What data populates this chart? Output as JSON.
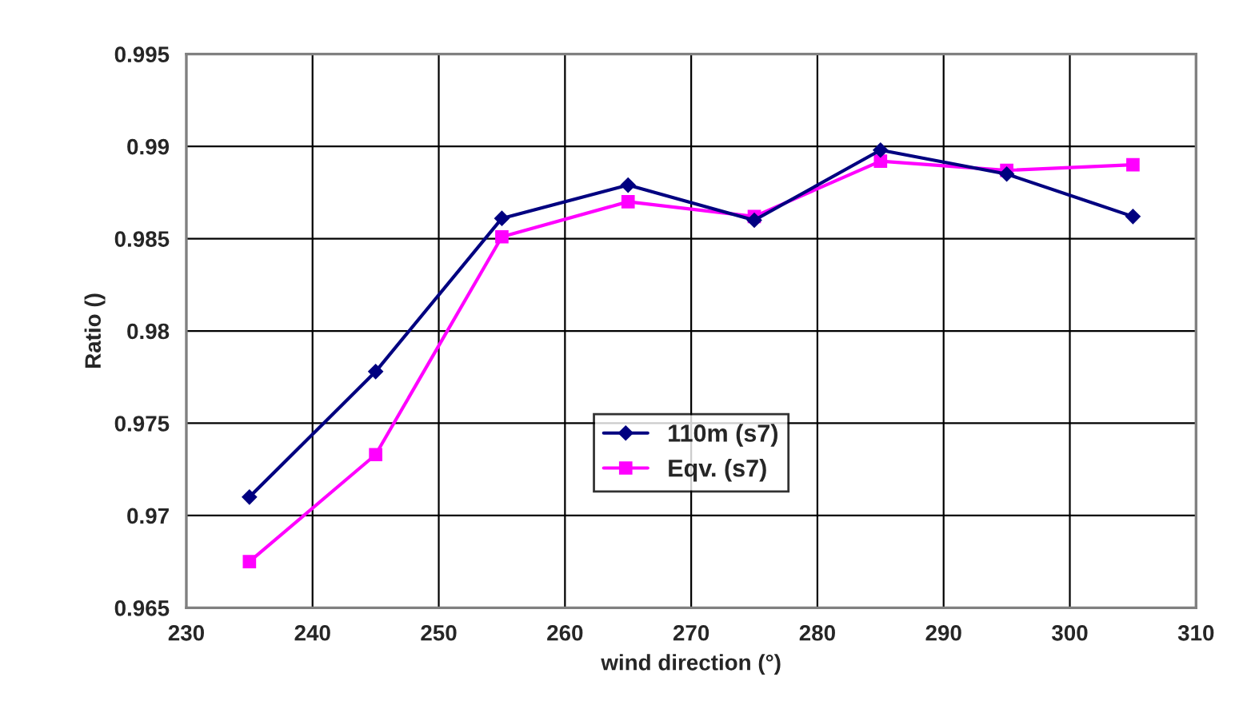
{
  "chart_data": {
    "type": "line",
    "xlabel": "wind direction (°)",
    "ylabel": "Ratio ()",
    "x": [
      235,
      245,
      255,
      265,
      275,
      285,
      295,
      305
    ],
    "series": [
      {
        "name": "110m (s7)",
        "color": "#000080",
        "marker": "diamond",
        "values": [
          0.971,
          0.9778,
          0.9861,
          0.9879,
          0.986,
          0.9898,
          0.9885,
          0.9862
        ]
      },
      {
        "name": "Eqv. (s7)",
        "color": "#ff00ff",
        "marker": "square",
        "values": [
          0.9675,
          0.9733,
          0.9851,
          0.987,
          0.9862,
          0.9892,
          0.9887,
          0.989
        ]
      }
    ],
    "xlim": [
      230,
      310
    ],
    "xticks": [
      230,
      240,
      250,
      260,
      270,
      280,
      290,
      300,
      310
    ],
    "ylim": [
      0.965,
      0.995
    ],
    "yticks": [
      0.965,
      0.97,
      0.975,
      0.98,
      0.985,
      0.99,
      0.995
    ],
    "grid": true,
    "legend": "center",
    "line_style": "solid"
  }
}
